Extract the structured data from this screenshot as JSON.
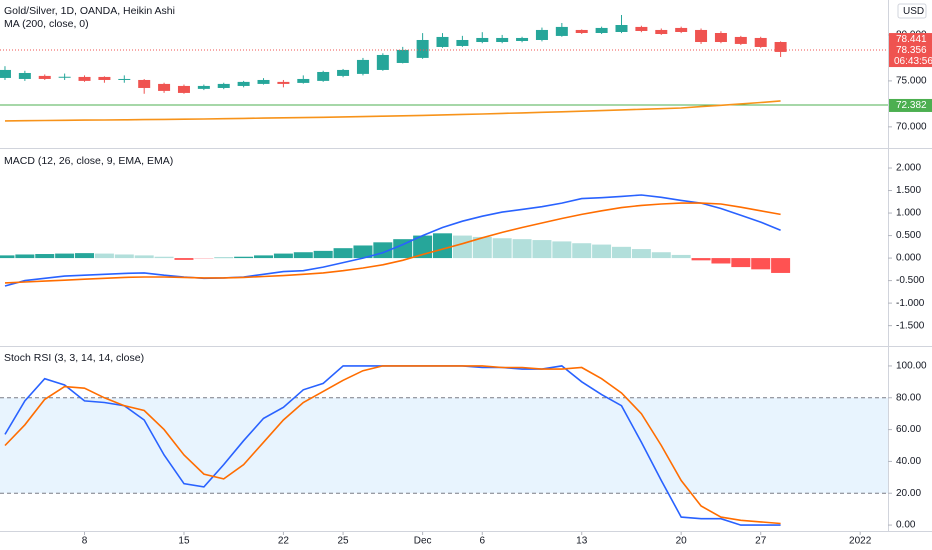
{
  "chart_data": [
    {
      "type": "candlestick",
      "title": "Gold/Silver, 1D, OANDA, Heikin Ashi",
      "x": [
        0,
        1,
        2,
        3,
        4,
        5,
        6,
        7,
        8,
        9,
        10,
        11,
        12,
        13,
        14,
        15,
        16,
        17,
        18,
        19,
        20,
        21,
        22,
        23,
        24,
        25,
        26,
        27,
        28,
        29,
        30,
        31,
        32,
        33,
        34,
        35,
        36,
        37,
        38,
        39
      ],
      "open": [
        75.32,
        75.21,
        75.54,
        75.42,
        75.43,
        75.43,
        75.2,
        75.1,
        74.67,
        74.45,
        74.13,
        74.23,
        74.45,
        74.67,
        74.89,
        74.78,
        75.0,
        75.54,
        75.76,
        76.19,
        76.95,
        77.5,
        78.69,
        78.8,
        79.23,
        79.23,
        79.34,
        79.45,
        79.89,
        80.54,
        80.21,
        80.32,
        80.87,
        80.54,
        80.76,
        80.54,
        80.21,
        79.78,
        79.67,
        79.23
      ],
      "high": [
        76.6,
        76.1,
        75.7,
        75.8,
        75.6,
        75.5,
        75.6,
        75.2,
        74.8,
        74.6,
        74.6,
        74.8,
        75.0,
        75.3,
        75.1,
        75.6,
        76.1,
        76.3,
        77.5,
        78.0,
        78.7,
        80.2,
        80.2,
        79.9,
        80.3,
        80.0,
        79.8,
        80.8,
        81.3,
        80.6,
        80.9,
        82.17,
        81.0,
        80.7,
        80.9,
        80.7,
        80.4,
        79.9,
        79.8,
        79.3
      ],
      "low": [
        75.1,
        75.0,
        75.1,
        75.1,
        74.9,
        74.8,
        74.8,
        73.6,
        73.7,
        73.6,
        74.0,
        74.1,
        74.3,
        74.6,
        74.3,
        74.7,
        74.9,
        75.4,
        75.6,
        76.1,
        76.9,
        77.4,
        78.6,
        78.7,
        79.1,
        79.1,
        79.2,
        79.3,
        79.8,
        80.1,
        80.1,
        80.2,
        80.3,
        80.0,
        80.2,
        79.02,
        79.1,
        78.9,
        78.6,
        77.6
      ],
      "close": [
        76.19,
        75.86,
        75.21,
        75.45,
        75.0,
        75.1,
        75.21,
        74.23,
        73.91,
        73.69,
        74.45,
        74.67,
        74.89,
        75.1,
        74.67,
        75.21,
        75.97,
        76.19,
        77.28,
        77.82,
        78.37,
        79.45,
        79.78,
        79.45,
        79.67,
        79.67,
        79.67,
        80.54,
        80.87,
        80.21,
        80.76,
        81.08,
        80.43,
        80.1,
        80.32,
        79.23,
        79.23,
        79.02,
        78.69,
        78.15
      ],
      "up_color": "#26a69a",
      "down_color": "#ef5350",
      "series": [
        {
          "name": "MA (200, close, 0)",
          "color": "#f7931a",
          "values": [
            70.65,
            70.67,
            70.69,
            70.71,
            70.73,
            70.75,
            70.77,
            70.79,
            70.81,
            70.83,
            70.86,
            70.89,
            70.92,
            70.95,
            70.98,
            71.01,
            71.04,
            71.08,
            71.12,
            71.16,
            71.2,
            71.25,
            71.3,
            71.35,
            71.4,
            71.46,
            71.52,
            71.58,
            71.64,
            71.7,
            71.77,
            71.84,
            71.91,
            71.98,
            72.05,
            72.2,
            72.35,
            72.5,
            72.65,
            72.82
          ]
        }
      ],
      "horizontal_line": {
        "value": 72.382,
        "color": "#4caf50"
      },
      "price_labels": [
        {
          "value": 78.441,
          "color": "#ef5350"
        },
        {
          "value": 78.356,
          "color": "#ef5350"
        }
      ],
      "countdown": "06:43:56",
      "currency": "USD",
      "xlim": [
        -0.25,
        44.4
      ],
      "ylim": [
        67.7,
        83.8
      ],
      "yticks": [
        {
          "value": 70,
          "label": "70.000"
        },
        {
          "value": 75,
          "label": "75.000"
        },
        {
          "value": 80,
          "label": "80.000"
        }
      ]
    },
    {
      "type": "macd",
      "title": "MACD (12, 26, close, 9, EMA, EMA)",
      "x": [
        0,
        1,
        2,
        3,
        4,
        5,
        6,
        7,
        8,
        9,
        10,
        11,
        12,
        13,
        14,
        15,
        16,
        17,
        18,
        19,
        20,
        21,
        22,
        23,
        24,
        25,
        26,
        27,
        28,
        29,
        30,
        31,
        32,
        33,
        34,
        35,
        36,
        37,
        38,
        39
      ],
      "histogram": [
        0.06,
        0.08,
        0.09,
        0.1,
        0.11,
        0.1,
        0.08,
        0.06,
        0.03,
        -0.04,
        -0.02,
        0.01,
        0.03,
        0.06,
        0.1,
        0.13,
        0.16,
        0.22,
        0.28,
        0.35,
        0.42,
        0.5,
        0.55,
        0.5,
        0.47,
        0.44,
        0.42,
        0.4,
        0.37,
        0.33,
        0.3,
        0.25,
        0.2,
        0.13,
        0.07,
        -0.05,
        -0.12,
        -0.2,
        -0.25,
        -0.33
      ],
      "histogram_colors": [
        "#26a69a",
        "#b2dfdb",
        "#ffcdd2",
        "#ff5252"
      ],
      "series": [
        {
          "color": "#2962ff",
          "values": [
            -0.62,
            -0.5,
            -0.45,
            -0.4,
            -0.38,
            -0.36,
            -0.34,
            -0.33,
            -0.38,
            -0.42,
            -0.45,
            -0.44,
            -0.42,
            -0.36,
            -0.3,
            -0.28,
            -0.2,
            -0.1,
            0.0,
            0.12,
            0.3,
            0.5,
            0.68,
            0.82,
            0.93,
            1.02,
            1.08,
            1.14,
            1.22,
            1.32,
            1.34,
            1.37,
            1.4,
            1.35,
            1.28,
            1.22,
            1.1,
            0.95,
            0.8,
            0.62
          ]
        },
        {
          "color": "#ff6d00",
          "values": [
            -0.55,
            -0.53,
            -0.51,
            -0.49,
            -0.47,
            -0.45,
            -0.43,
            -0.42,
            -0.42,
            -0.43,
            -0.44,
            -0.44,
            -0.43,
            -0.41,
            -0.39,
            -0.36,
            -0.33,
            -0.28,
            -0.22,
            -0.15,
            -0.05,
            0.08,
            0.2,
            0.32,
            0.45,
            0.57,
            0.68,
            0.78,
            0.88,
            0.97,
            1.05,
            1.12,
            1.17,
            1.2,
            1.22,
            1.22,
            1.2,
            1.13,
            1.05,
            0.97
          ]
        }
      ],
      "xlim": [
        -0.25,
        44.4
      ],
      "ylim": [
        -1.93,
        2.4
      ],
      "yticks": [
        {
          "value": -1.5,
          "label": "-1.500"
        },
        {
          "value": -1,
          "label": "-1.000"
        },
        {
          "value": -0.5,
          "label": "-0.500"
        },
        {
          "value": 0,
          "label": "0.000"
        },
        {
          "value": 0.5,
          "label": "0.500"
        },
        {
          "value": 1,
          "label": "1.000"
        },
        {
          "value": 1.5,
          "label": "1.500"
        },
        {
          "value": 2,
          "label": "2.000"
        }
      ]
    },
    {
      "type": "stoch",
      "title": "Stoch RSI (3, 3, 14, 14, close)",
      "x": [
        0,
        1,
        2,
        3,
        4,
        5,
        6,
        7,
        8,
        9,
        10,
        11,
        12,
        13,
        14,
        15,
        16,
        17,
        18,
        19,
        20,
        21,
        22,
        23,
        24,
        25,
        26,
        27,
        28,
        29,
        30,
        31,
        32,
        33,
        34,
        35,
        36,
        37,
        38,
        39
      ],
      "series": [
        {
          "color": "#2962ff",
          "values": [
            57,
            78,
            92,
            88,
            78,
            77,
            75,
            66,
            44,
            26,
            24,
            38,
            53,
            67,
            74,
            85,
            89,
            100,
            100,
            100,
            100,
            100,
            100,
            100,
            99,
            99,
            98,
            98,
            100,
            90,
            82,
            75,
            52,
            28,
            5,
            4,
            4,
            0,
            0,
            0
          ]
        },
        {
          "color": "#ff6d00",
          "values": [
            50,
            63,
            79,
            87,
            86,
            80,
            75,
            72,
            60,
            44,
            32,
            29,
            38,
            52,
            66,
            77,
            84,
            91,
            97,
            100,
            100,
            100,
            100,
            100,
            100,
            99,
            99,
            98,
            98,
            99,
            92,
            83,
            70,
            50,
            28,
            12,
            5,
            3,
            2,
            1
          ]
        }
      ],
      "band": [
        20,
        80
      ],
      "band_color": "#2196f3",
      "xlim": [
        -0.25,
        44.4
      ],
      "ylim": [
        -3.1,
        111.9
      ],
      "yticks": [
        {
          "value": 0,
          "label": "0.00"
        },
        {
          "value": 20,
          "label": "20.00"
        },
        {
          "value": 40,
          "label": "40.00"
        },
        {
          "value": 60,
          "label": "60.00"
        },
        {
          "value": 80,
          "label": "80.00"
        },
        {
          "value": 100,
          "label": "100.00"
        }
      ],
      "xticks": [
        {
          "value": 4,
          "label": "8"
        },
        {
          "value": 9,
          "label": "15"
        },
        {
          "value": 14,
          "label": "22"
        },
        {
          "value": 17,
          "label": "25"
        },
        {
          "value": 21,
          "label": "Dec"
        },
        {
          "value": 24,
          "label": "6"
        },
        {
          "value": 29,
          "label": "13"
        },
        {
          "value": 34,
          "label": "20"
        },
        {
          "value": 38,
          "label": "27"
        },
        {
          "value": 43,
          "label": "2022"
        }
      ]
    }
  ]
}
